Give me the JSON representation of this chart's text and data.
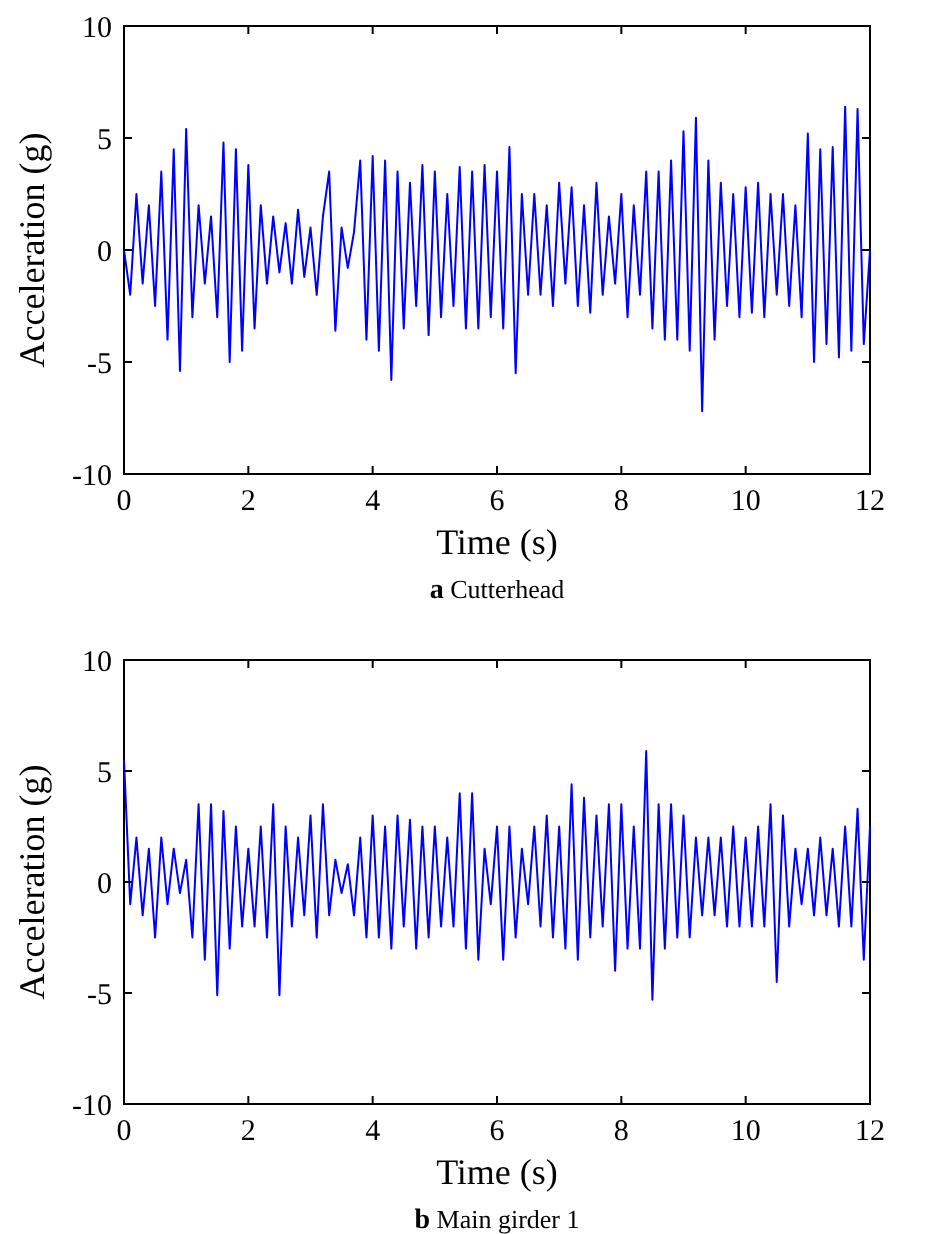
{
  "chart_data": [
    {
      "type": "line",
      "title": "a Cutterhead",
      "xlabel": "Time (s)",
      "ylabel": "Acceleration (g)",
      "xlim": [
        0,
        12
      ],
      "ylim": [
        -10,
        10
      ],
      "xticks": [
        0,
        2,
        4,
        6,
        8,
        10,
        12
      ],
      "yticks": [
        -10,
        -5,
        0,
        5,
        10
      ],
      "grid": false,
      "line_style": "solid",
      "x": [
        0,
        0.1,
        0.2,
        0.3,
        0.4,
        0.5,
        0.6,
        0.7,
        0.8,
        0.9,
        1,
        1.1,
        1.2,
        1.3,
        1.4,
        1.5,
        1.6,
        1.7,
        1.8,
        1.9,
        2,
        2.1,
        2.2,
        2.3,
        2.4,
        2.5,
        2.6,
        2.7,
        2.8,
        2.9,
        3,
        3.1,
        3.2,
        3.3,
        3.4,
        3.5,
        3.6,
        3.7,
        3.8,
        3.9,
        4,
        4.1,
        4.2,
        4.3,
        4.4,
        4.5,
        4.6,
        4.7,
        4.8,
        4.9,
        5,
        5.1,
        5.2,
        5.3,
        5.4,
        5.5,
        5.6,
        5.7,
        5.8,
        5.9,
        6,
        6.1,
        6.2,
        6.3,
        6.4,
        6.5,
        6.6,
        6.7,
        6.8,
        6.9,
        7,
        7.1,
        7.2,
        7.3,
        7.4,
        7.5,
        7.6,
        7.7,
        7.8,
        7.9,
        8,
        8.1,
        8.2,
        8.3,
        8.4,
        8.5,
        8.6,
        8.7,
        8.8,
        8.9,
        9,
        9.1,
        9.2,
        9.3,
        9.4,
        9.5,
        9.6,
        9.7,
        9.8,
        9.9,
        10,
        10.1,
        10.2,
        10.3,
        10.4,
        10.5,
        10.6,
        10.7,
        10.8,
        10.9,
        11,
        11.1,
        11.2,
        11.3,
        11.4,
        11.5,
        11.6,
        11.7,
        11.8,
        11.9,
        12
      ],
      "series": [
        {
          "color": "#0000ff",
          "values": [
            0,
            -2,
            2.5,
            -1.5,
            2,
            -2.5,
            3.5,
            -4,
            4.5,
            -5.4,
            5.4,
            -3,
            2,
            -1.5,
            1.5,
            -3,
            4.8,
            -5,
            4.5,
            -4.5,
            3.8,
            -3.5,
            2,
            -1.5,
            1.5,
            -1,
            1.2,
            -1.5,
            1.8,
            -1.2,
            1,
            -2,
            1.5,
            3.5,
            -3.6,
            1,
            -0.8,
            0.8,
            4,
            -4,
            4.2,
            -4.5,
            4,
            -5.8,
            3.5,
            -3.5,
            3,
            -2.5,
            3.8,
            -3.8,
            3.5,
            -3,
            2.5,
            -2.5,
            3.7,
            -3.5,
            3.5,
            -3.5,
            3.8,
            -3,
            3.5,
            -3.5,
            4.6,
            -5.5,
            2.5,
            -2,
            2.5,
            -2,
            2,
            -2.5,
            3,
            -1.5,
            2.8,
            -2.5,
            2,
            -2.8,
            3,
            -2,
            1.5,
            -1.5,
            2.5,
            -3,
            2,
            -2,
            3.5,
            -3.5,
            3.5,
            -4,
            4,
            -4,
            5.3,
            -4.5,
            5.9,
            -7.2,
            4,
            -4,
            3,
            -2.5,
            2.5,
            -3,
            2.8,
            -2.8,
            3,
            -3,
            2.5,
            -2,
            2.5,
            -2.5,
            2,
            -3,
            5.2,
            -5,
            4.5,
            -4.2,
            4.6,
            -4.8,
            6.4,
            -4.5,
            6.3,
            -4.2,
            0
          ]
        }
      ]
    },
    {
      "type": "line",
      "title": "b Main girder 1",
      "xlabel": "Time (s)",
      "ylabel": "Acceleration (g)",
      "xlim": [
        0,
        12
      ],
      "ylim": [
        -10,
        10
      ],
      "xticks": [
        0,
        2,
        4,
        6,
        8,
        10,
        12
      ],
      "yticks": [
        -10,
        -5,
        0,
        5,
        10
      ],
      "grid": false,
      "line_style": "solid",
      "x": [
        0,
        0.1,
        0.2,
        0.3,
        0.4,
        0.5,
        0.6,
        0.7,
        0.8,
        0.9,
        1,
        1.1,
        1.2,
        1.3,
        1.4,
        1.5,
        1.6,
        1.7,
        1.8,
        1.9,
        2,
        2.1,
        2.2,
        2.3,
        2.4,
        2.5,
        2.6,
        2.7,
        2.8,
        2.9,
        3,
        3.1,
        3.2,
        3.3,
        3.4,
        3.5,
        3.6,
        3.7,
        3.8,
        3.9,
        4,
        4.1,
        4.2,
        4.3,
        4.4,
        4.5,
        4.6,
        4.7,
        4.8,
        4.9,
        5,
        5.1,
        5.2,
        5.3,
        5.4,
        5.5,
        5.6,
        5.7,
        5.8,
        5.9,
        6,
        6.1,
        6.2,
        6.3,
        6.4,
        6.5,
        6.6,
        6.7,
        6.8,
        6.9,
        7,
        7.1,
        7.2,
        7.3,
        7.4,
        7.5,
        7.6,
        7.7,
        7.8,
        7.9,
        8,
        8.1,
        8.2,
        8.3,
        8.4,
        8.5,
        8.6,
        8.7,
        8.8,
        8.9,
        9,
        9.1,
        9.2,
        9.3,
        9.4,
        9.5,
        9.6,
        9.7,
        9.8,
        9.9,
        10,
        10.1,
        10.2,
        10.3,
        10.4,
        10.5,
        10.6,
        10.7,
        10.8,
        10.9,
        11,
        11.1,
        11.2,
        11.3,
        11.4,
        11.5,
        11.6,
        11.7,
        11.8,
        11.9,
        12
      ],
      "series": [
        {
          "color": "#0000ff",
          "values": [
            5.5,
            -1,
            2,
            -1.5,
            1.5,
            -2.5,
            2,
            -1,
            1.5,
            -0.5,
            1,
            -2.5,
            3.5,
            -3.5,
            3.5,
            -5.1,
            3.2,
            -3,
            2.5,
            -2,
            1.5,
            -2,
            2.5,
            -2.5,
            3.5,
            -5.1,
            2.5,
            -2,
            2,
            -1.5,
            3,
            -2.5,
            3.5,
            -1.5,
            1,
            -0.5,
            0.8,
            -1.5,
            2,
            -2.5,
            3,
            -2.5,
            2.5,
            -3,
            3,
            -2,
            2.8,
            -3,
            2.5,
            -2.5,
            2.5,
            -2,
            2,
            -2,
            4,
            -3,
            4,
            -3.5,
            1.5,
            -1,
            2.5,
            -3.5,
            2.5,
            -2.5,
            1.5,
            -1,
            2.5,
            -2,
            3,
            -2.5,
            2.5,
            -3,
            4.4,
            -3.5,
            3.8,
            -2.5,
            3,
            -2,
            3.5,
            -4,
            3.5,
            -3,
            2.5,
            -3,
            5.9,
            -5.3,
            3.5,
            -3,
            3.5,
            -2.5,
            3,
            -2.5,
            2,
            -1.5,
            2,
            -1.5,
            2,
            -2,
            2.5,
            -2,
            2,
            -2,
            2.5,
            -2,
            3.5,
            -4.5,
            3,
            -2,
            1.5,
            -1,
            1.5,
            -1.5,
            2,
            -1.5,
            1.5,
            -2,
            2.5,
            -2,
            3.3,
            -3.5,
            2.5
          ]
        }
      ]
    }
  ]
}
